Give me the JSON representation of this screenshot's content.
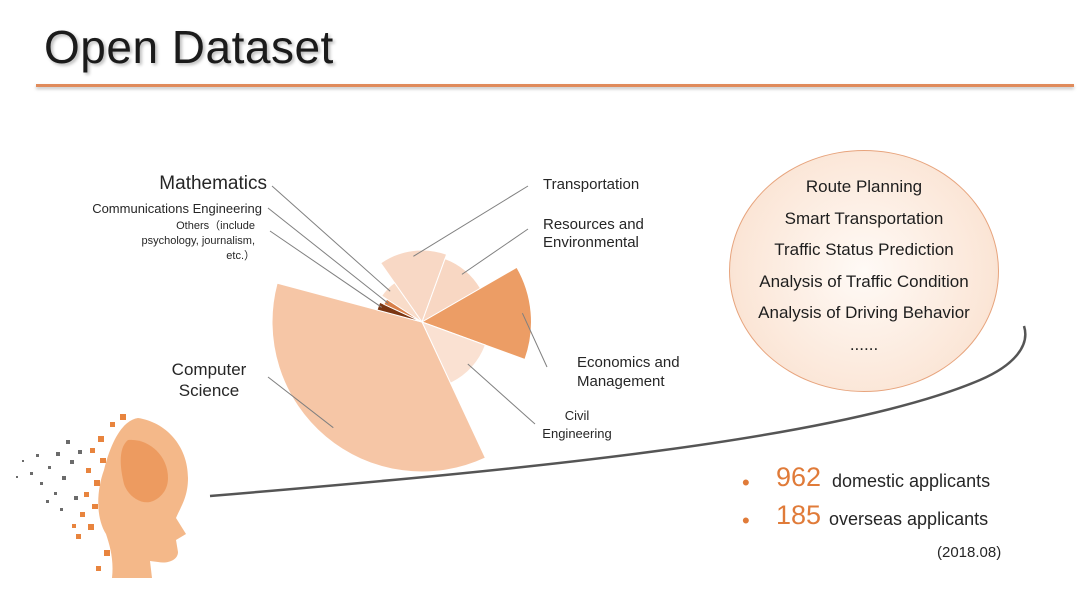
{
  "page": {
    "title": "Open Dataset"
  },
  "chart_data": {
    "type": "pie",
    "variant": "polar-area",
    "title": "",
    "categories": [
      "Transportation",
      "Resources and Environmental",
      "Economics and Management",
      "Civil Engineering",
      "Computer Science",
      "Others（include psychology, journalism, etc.）",
      "Communications Engineering",
      "Mathematics"
    ],
    "labels": [
      {
        "lines": [
          "Transportation"
        ]
      },
      {
        "lines": [
          "Resources and",
          "Environmental"
        ]
      },
      {
        "lines": [
          "Economics and",
          "Management"
        ]
      },
      {
        "lines": [
          "Civil",
          "Engineering"
        ]
      },
      {
        "lines": [
          "Computer",
          "Science"
        ]
      },
      {
        "lines": [
          "Others（include",
          "psychology,    journalism,",
          "etc.）"
        ]
      },
      {
        "lines": [
          "Communications  Engineering"
        ]
      },
      {
        "lines": [
          "Mathematics"
        ]
      }
    ],
    "values": [
      {
        "angle": 55,
        "radius": 0.48
      },
      {
        "angle": 40,
        "radius": 0.45
      },
      {
        "angle": 50,
        "radius": 0.73
      },
      {
        "angle": 45,
        "radius": 0.45
      },
      {
        "angle": 130,
        "radius": 1.0
      },
      {
        "angle": 10,
        "radius": 0.31
      },
      {
        "angle": 8,
        "radius": 0.28
      },
      {
        "angle": 22,
        "radius": 0.32
      }
    ],
    "colors": [
      "#f8d8c5",
      "#f8d7c3",
      "#ec9d65",
      "#fae1d2",
      "#f6c6a6",
      "#7b3612",
      "#d9804a",
      "#f9dcc9"
    ],
    "legend": "none"
  },
  "applications": {
    "items": [
      "Route Planning",
      "Smart Transportation",
      "Traffic Status Prediction",
      "Analysis of Traffic Condition",
      "Analysis of Driving Behavior",
      "......"
    ]
  },
  "stats": {
    "domestic": {
      "number": "962",
      "label": "domestic applicants"
    },
    "overseas": {
      "number": "185",
      "label": "overseas applicants"
    },
    "date": "(2018.08)"
  },
  "colors": {
    "accent": "#e07b39",
    "rule": "#e08b5b",
    "curve": "#555555"
  }
}
